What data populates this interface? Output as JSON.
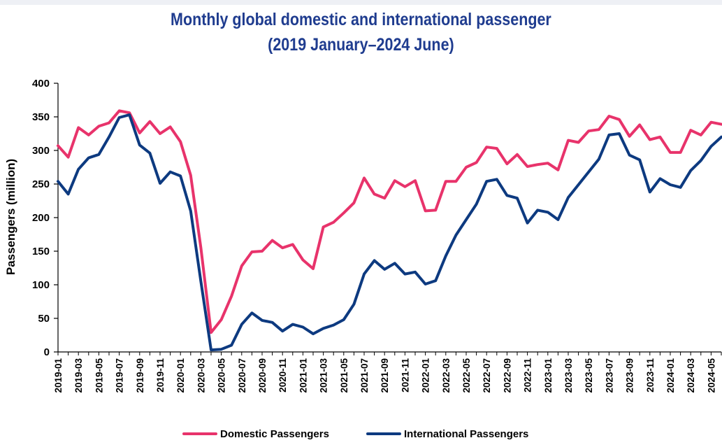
{
  "chart_data": {
    "type": "line",
    "title_line1": "Monthly global domestic and international passenger",
    "title_line2": "(2019 January–2024 June)",
    "ylabel": "Passengers (million)",
    "xlabel": "",
    "ylim": [
      0,
      400
    ],
    "yticks": [
      0,
      50,
      100,
      150,
      200,
      250,
      300,
      350,
      400
    ],
    "x": [
      "2019-01",
      "2019-02",
      "2019-03",
      "2019-04",
      "2019-05",
      "2019-06",
      "2019-07",
      "2019-08",
      "2019-09",
      "2019-10",
      "2019-11",
      "2019-12",
      "2020-01",
      "2020-02",
      "2020-03",
      "2020-04",
      "2020-05",
      "2020-06",
      "2020-07",
      "2020-08",
      "2020-09",
      "2020-10",
      "2020-11",
      "2020-12",
      "2021-01",
      "2021-02",
      "2021-03",
      "2021-04",
      "2021-05",
      "2021-06",
      "2021-07",
      "2021-08",
      "2021-09",
      "2021-10",
      "2021-11",
      "2021-12",
      "2022-01",
      "2022-02",
      "2022-03",
      "2022-04",
      "2022-05",
      "2022-06",
      "2022-07",
      "2022-08",
      "2022-09",
      "2022-10",
      "2022-11",
      "2022-12",
      "2023-01",
      "2023-02",
      "2023-03",
      "2023-04",
      "2023-05",
      "2023-06",
      "2023-07",
      "2023-08",
      "2023-09",
      "2023-10",
      "2023-11",
      "2023-12",
      "2024-01",
      "2024-02",
      "2024-03",
      "2024-04",
      "2024-05",
      "2024-06"
    ],
    "x_tick_labels": [
      "2019-01",
      "2019-03",
      "2019-05",
      "2019-07",
      "2019-09",
      "2019-11",
      "2020-01",
      "2020-03",
      "2020-05",
      "2020-07",
      "2020-09",
      "2020-11",
      "2021-01",
      "2021-03",
      "2021-05",
      "2021-07",
      "2021-09",
      "2021-11",
      "2022-01",
      "2022-03",
      "2022-05",
      "2022-07",
      "2022-09",
      "2022-11",
      "2023-01",
      "2023-03",
      "2023-05",
      "2023-07",
      "2023-09",
      "2023-11",
      "2024-01",
      "2024-03",
      "2024-05"
    ],
    "series": [
      {
        "name": "Domestic Passengers",
        "color": "#e8336b",
        "values": [
          307,
          290,
          334,
          323,
          336,
          341,
          359,
          356,
          326,
          343,
          325,
          335,
          313,
          263,
          155,
          29,
          48,
          83,
          128,
          149,
          150,
          166,
          155,
          160,
          137,
          124,
          186,
          193,
          207,
          222,
          259,
          235,
          229,
          255,
          246,
          255,
          210,
          211,
          254,
          254,
          275,
          282,
          305,
          303,
          280,
          294,
          276,
          279,
          281,
          271,
          315,
          312,
          329,
          331,
          351,
          346,
          321,
          338,
          316,
          320,
          297,
          297,
          330,
          323,
          342,
          339
        ]
      },
      {
        "name": "International Passengers",
        "color": "#0d3a80",
        "values": [
          254,
          235,
          272,
          289,
          294,
          320,
          349,
          353,
          308,
          296,
          251,
          268,
          262,
          210,
          105,
          3,
          4,
          10,
          41,
          58,
          47,
          44,
          31,
          41,
          37,
          27,
          35,
          40,
          48,
          71,
          116,
          136,
          123,
          132,
          116,
          119,
          101,
          106,
          143,
          174,
          197,
          220,
          254,
          257,
          233,
          229,
          192,
          211,
          208,
          197,
          230,
          249,
          268,
          287,
          323,
          325,
          293,
          286,
          238,
          258,
          249,
          245,
          270,
          285,
          306,
          320
        ]
      }
    ],
    "legend": [
      "Domestic Passengers",
      "International Passengers"
    ],
    "legend_position": "bottom-center",
    "grid": false
  }
}
